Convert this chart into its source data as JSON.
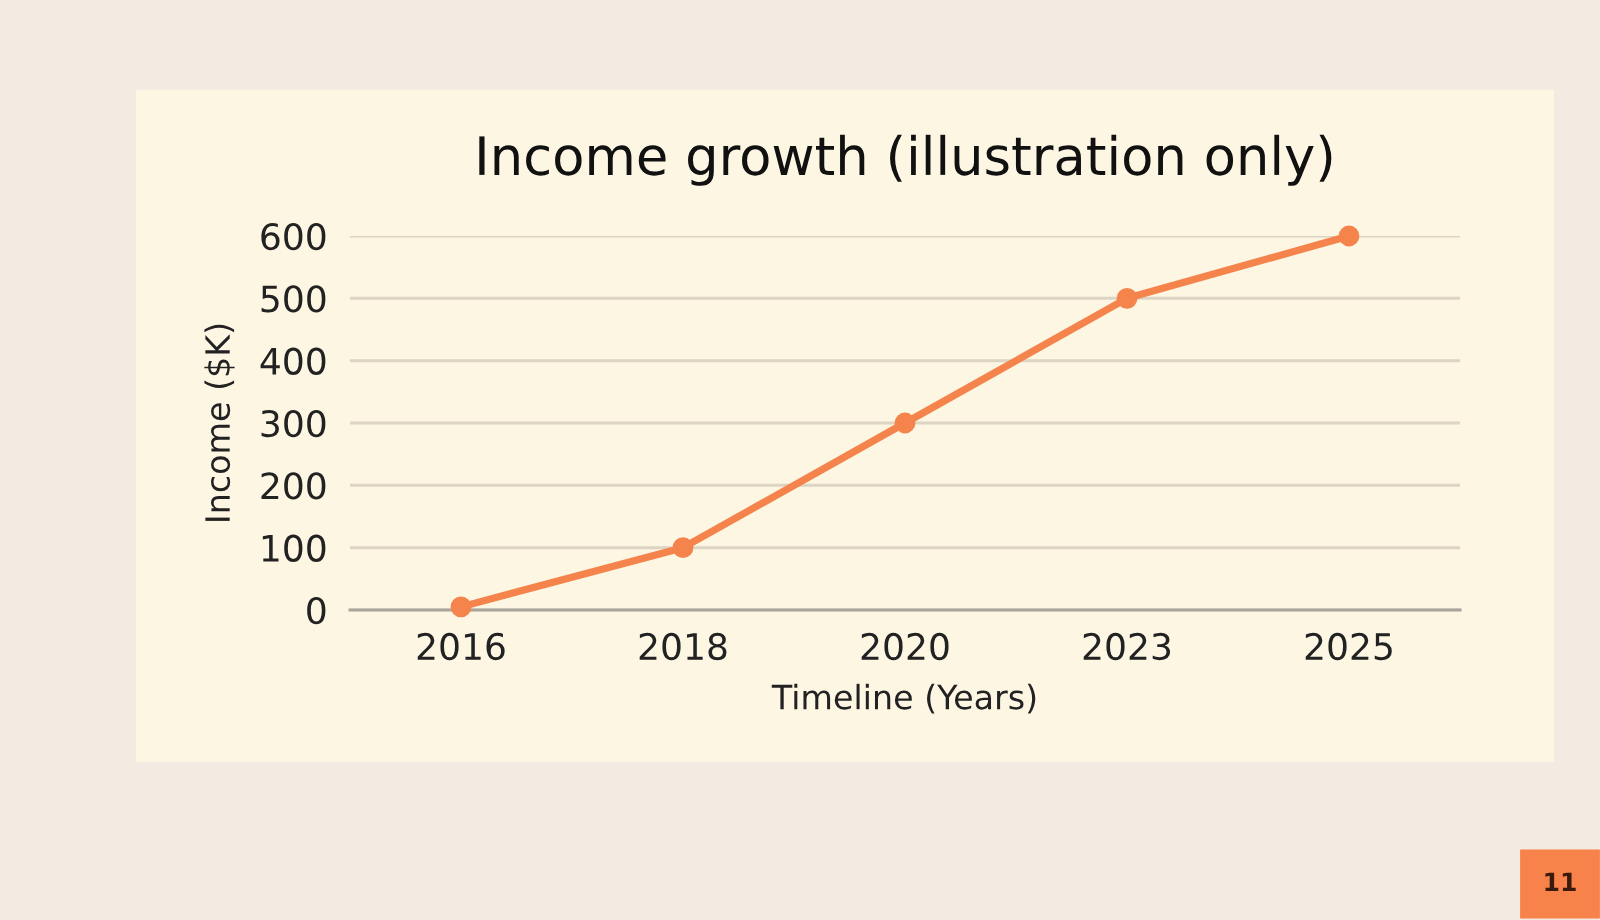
{
  "chart_data": {
    "type": "line",
    "title": "Income growth (illustration only)",
    "xlabel": "Timeline (Years)",
    "ylabel": "Income ($K)",
    "categories": [
      "2016",
      "2018",
      "2020",
      "2023",
      "2025"
    ],
    "series": [
      {
        "color": "#f4844c",
        "values": [
          5,
          100,
          300,
          500,
          600
        ]
      }
    ],
    "ylim": [
      0,
      600
    ],
    "yticks": [
      0,
      100,
      200,
      300,
      400,
      500,
      600
    ],
    "grid": "y",
    "legend": false,
    "marker": "circle",
    "line_style": "solid",
    "annotations": [
      "11"
    ]
  }
}
